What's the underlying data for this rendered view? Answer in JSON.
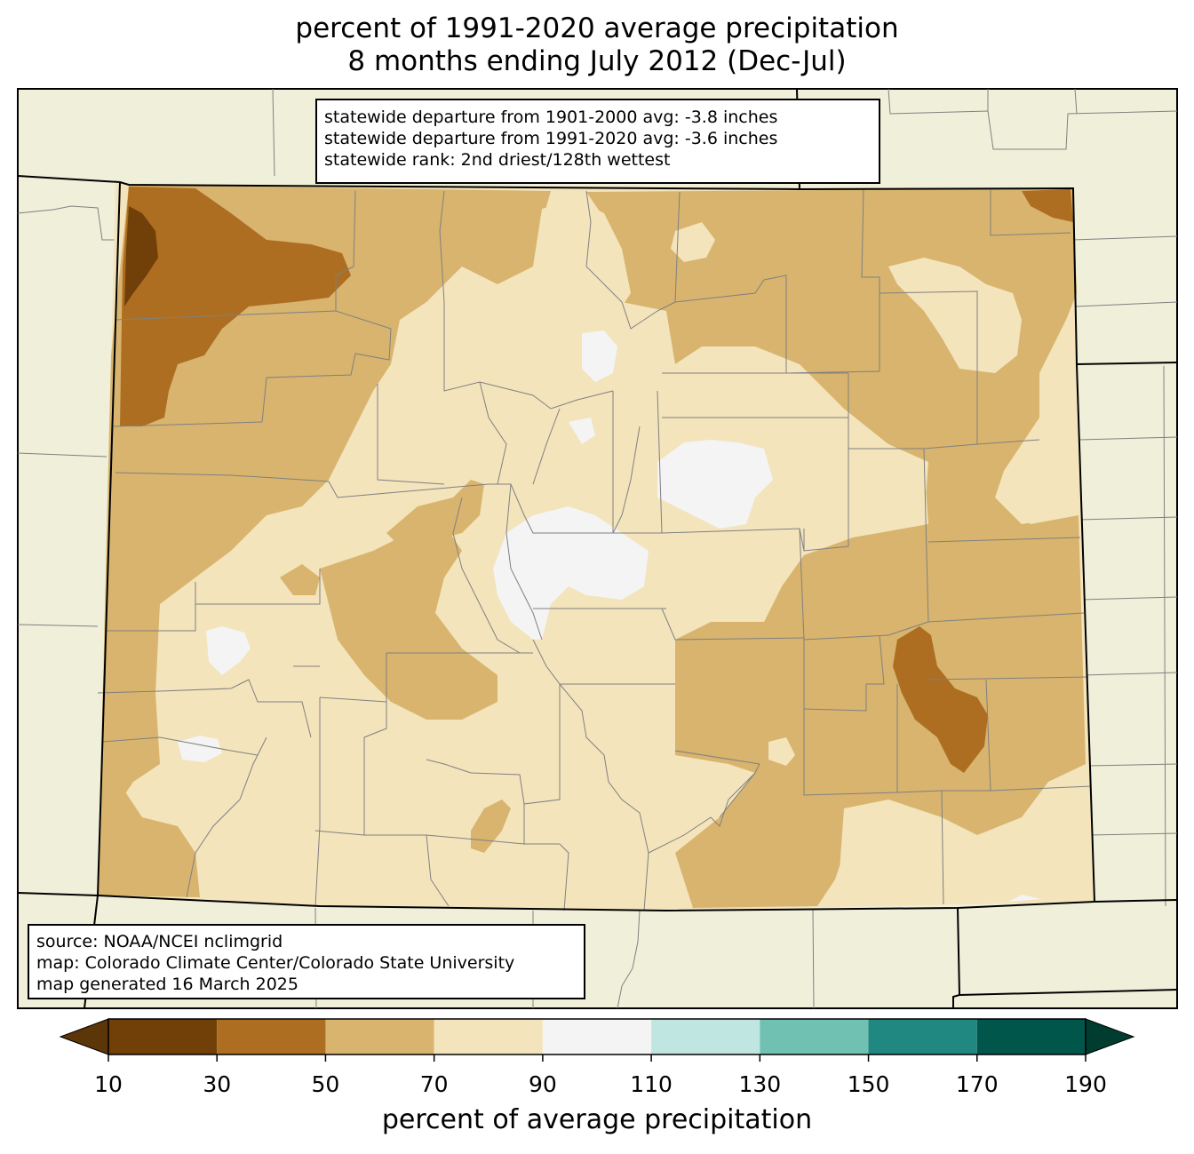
{
  "title": {
    "line1": "percent of 1991-2020 average precipitation",
    "line2": "8 months ending July 2012 (Dec-Jul)"
  },
  "stats": {
    "line1": "statewide departure from 1901-2000 avg: -3.8 inches",
    "line2": "statewide departure from 1991-2020 avg: -3.6 inches",
    "line3": "statewide rank: 2nd driest/128th wettest"
  },
  "source": {
    "line1": "source: NOAA/NCEI nclimgrid",
    "line2": "map: Colorado Climate Center/Colorado State University",
    "line3": "map generated 16 March 2025"
  },
  "colorbar": {
    "label": "percent of average precipitation",
    "ticks": [
      "10",
      "30",
      "50",
      "70",
      "90",
      "110",
      "130",
      "150",
      "170",
      "190"
    ],
    "under_color": "#5c3508",
    "over_color": "#003c30",
    "bins": [
      {
        "from": 10,
        "to": 30,
        "color": "#714009"
      },
      {
        "from": 30,
        "to": 50,
        "color": "#ad6e22"
      },
      {
        "from": 50,
        "to": 70,
        "color": "#d8b46e"
      },
      {
        "from": 70,
        "to": 90,
        "color": "#f3e4bc"
      },
      {
        "from": 90,
        "to": 110,
        "color": "#f4f4f4"
      },
      {
        "from": 110,
        "to": 130,
        "color": "#bfe6e0"
      },
      {
        "from": 130,
        "to": 150,
        "color": "#70c1b2"
      },
      {
        "from": 150,
        "to": 170,
        "color": "#208881"
      },
      {
        "from": 170,
        "to": 190,
        "color": "#01564b"
      }
    ]
  },
  "colors": {
    "land_outside": "#f0efda",
    "county_lines": "#808080",
    "state_lines": "#000000"
  }
}
